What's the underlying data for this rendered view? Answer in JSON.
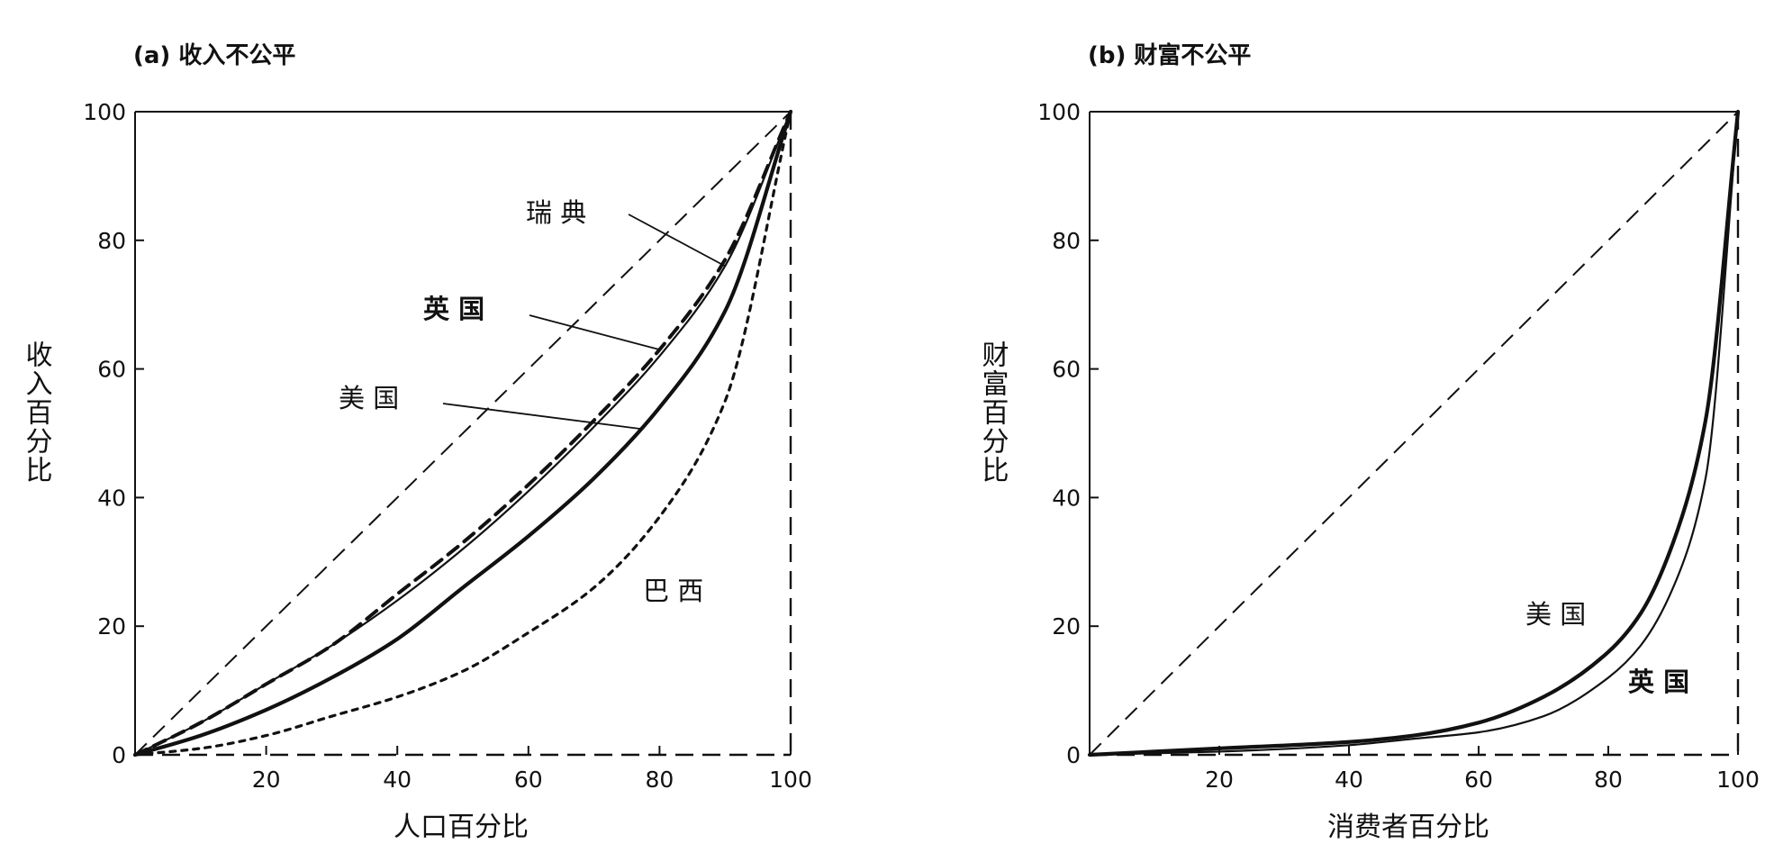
{
  "chart_data": [
    {
      "type": "line",
      "title": "(a) 收入不公平",
      "xlabel": "人口百分比",
      "ylabel": "收入百分比",
      "xlim": [
        0,
        100
      ],
      "ylim": [
        0,
        100
      ],
      "xticks": [
        "20",
        "40",
        "60",
        "80",
        "100"
      ],
      "yticks": [
        "0",
        "20",
        "40",
        "60",
        "80",
        "100"
      ],
      "grid": false,
      "series": [
        {
          "name": "瑞 典",
          "style": "thin-solid",
          "x": [
            0,
            10,
            20,
            30,
            40,
            50,
            60,
            70,
            80,
            90,
            100
          ],
          "y": [
            0,
            5,
            11,
            17,
            24,
            32,
            41,
            51,
            62,
            76,
            100
          ]
        },
        {
          "name": "英 国",
          "style": "bold-dashed",
          "x": [
            0,
            10,
            20,
            30,
            40,
            50,
            60,
            70,
            80,
            90,
            100
          ],
          "y": [
            0,
            5,
            11,
            17,
            25,
            33,
            42,
            52,
            63,
            77,
            100
          ]
        },
        {
          "name": "美 国",
          "style": "bold-solid",
          "x": [
            0,
            10,
            20,
            30,
            40,
            50,
            60,
            70,
            80,
            90,
            100
          ],
          "y": [
            0,
            3,
            7,
            12,
            18,
            26,
            34,
            43,
            54,
            69,
            100
          ]
        },
        {
          "name": "巴 西",
          "style": "short-dashed",
          "x": [
            0,
            10,
            20,
            30,
            40,
            50,
            60,
            70,
            80,
            90,
            100
          ],
          "y": [
            0,
            1,
            3,
            6,
            9,
            13,
            19,
            26,
            37,
            55,
            100
          ]
        }
      ]
    },
    {
      "type": "line",
      "title": "(b) 财富不公平",
      "xlabel": "消费者百分比",
      "ylabel": "财富百分比",
      "xlim": [
        0,
        100
      ],
      "ylim": [
        0,
        100
      ],
      "xticks": [
        "20",
        "40",
        "60",
        "80",
        "100"
      ],
      "yticks": [
        "0",
        "20",
        "40",
        "60",
        "80",
        "100"
      ],
      "grid": false,
      "series": [
        {
          "name": "美 国",
          "style": "bold-solid",
          "x": [
            0,
            20,
            40,
            50,
            60,
            70,
            80,
            85,
            90,
            95,
            100
          ],
          "y": [
            0,
            1,
            2,
            3,
            5,
            9,
            16,
            22,
            33,
            52,
            100
          ]
        },
        {
          "name": "英 国",
          "style": "thin-solid",
          "x": [
            0,
            20,
            40,
            50,
            60,
            70,
            80,
            85,
            90,
            95,
            100
          ],
          "y": [
            0,
            0.5,
            1.5,
            2.5,
            3.5,
            6,
            12,
            17,
            26,
            43,
            100
          ]
        }
      ]
    }
  ]
}
